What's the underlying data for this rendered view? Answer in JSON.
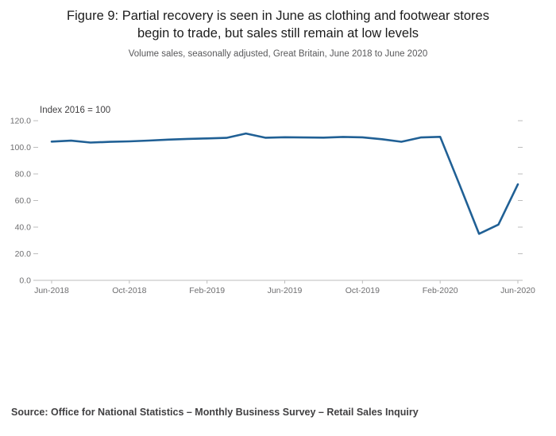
{
  "header": {
    "title_line1": "Figure 9: Partial recovery is seen in June as clothing and footwear stores",
    "title_line2": "begin to trade, but sales still remain at low levels",
    "subtitle": "Volume sales, seasonally adjusted, Great Britain, June 2018 to June 2020"
  },
  "footer": {
    "source": "Source: Office for National Statistics – Monthly Business Survey – Retail Sales Inquiry"
  },
  "chart_data": {
    "type": "line",
    "title": "Figure 9: Partial recovery is seen in June as clothing and footwear stores begin to trade, but sales still remain at low levels",
    "subtitle": "Volume sales, seasonally adjusted, Great Britain, June 2018 to June 2020",
    "y_axis_label": "Index 2016 = 100",
    "ylim": [
      0,
      120
    ],
    "y_ticks": [
      0,
      20,
      40,
      60,
      80,
      100,
      120
    ],
    "y_tick_labels": [
      "0.0",
      "20.0",
      "40.0",
      "60.0",
      "80.0",
      "100.0",
      "120.0"
    ],
    "x": [
      "Jun-2018",
      "Jul-2018",
      "Aug-2018",
      "Sep-2018",
      "Oct-2018",
      "Nov-2018",
      "Dec-2018",
      "Jan-2019",
      "Feb-2019",
      "Mar-2019",
      "Apr-2019",
      "May-2019",
      "Jun-2019",
      "Jul-2019",
      "Aug-2019",
      "Sep-2019",
      "Oct-2019",
      "Nov-2019",
      "Dec-2019",
      "Jan-2020",
      "Feb-2020",
      "Mar-2020",
      "Apr-2020",
      "May-2020",
      "Jun-2020"
    ],
    "x_tick_indices": [
      0,
      4,
      8,
      12,
      16,
      20,
      24
    ],
    "x_tick_labels": [
      "Jun-2018",
      "Oct-2018",
      "Feb-2019",
      "Jun-2019",
      "Oct-2019",
      "Feb-2020",
      "Jun-2020"
    ],
    "grid": false,
    "legend": "none",
    "series": [
      {
        "name": "Clothing and footwear stores volume sales",
        "color": "#206095",
        "values": [
          104.3,
          105.0,
          103.6,
          104.1,
          104.5,
          105.1,
          105.8,
          106.3,
          106.7,
          107.1,
          110.4,
          107.2,
          107.6,
          107.4,
          107.3,
          107.8,
          107.5,
          106.1,
          104.2,
          107.4,
          107.9,
          71.8,
          35.0,
          41.9,
          72.2
        ]
      }
    ]
  }
}
